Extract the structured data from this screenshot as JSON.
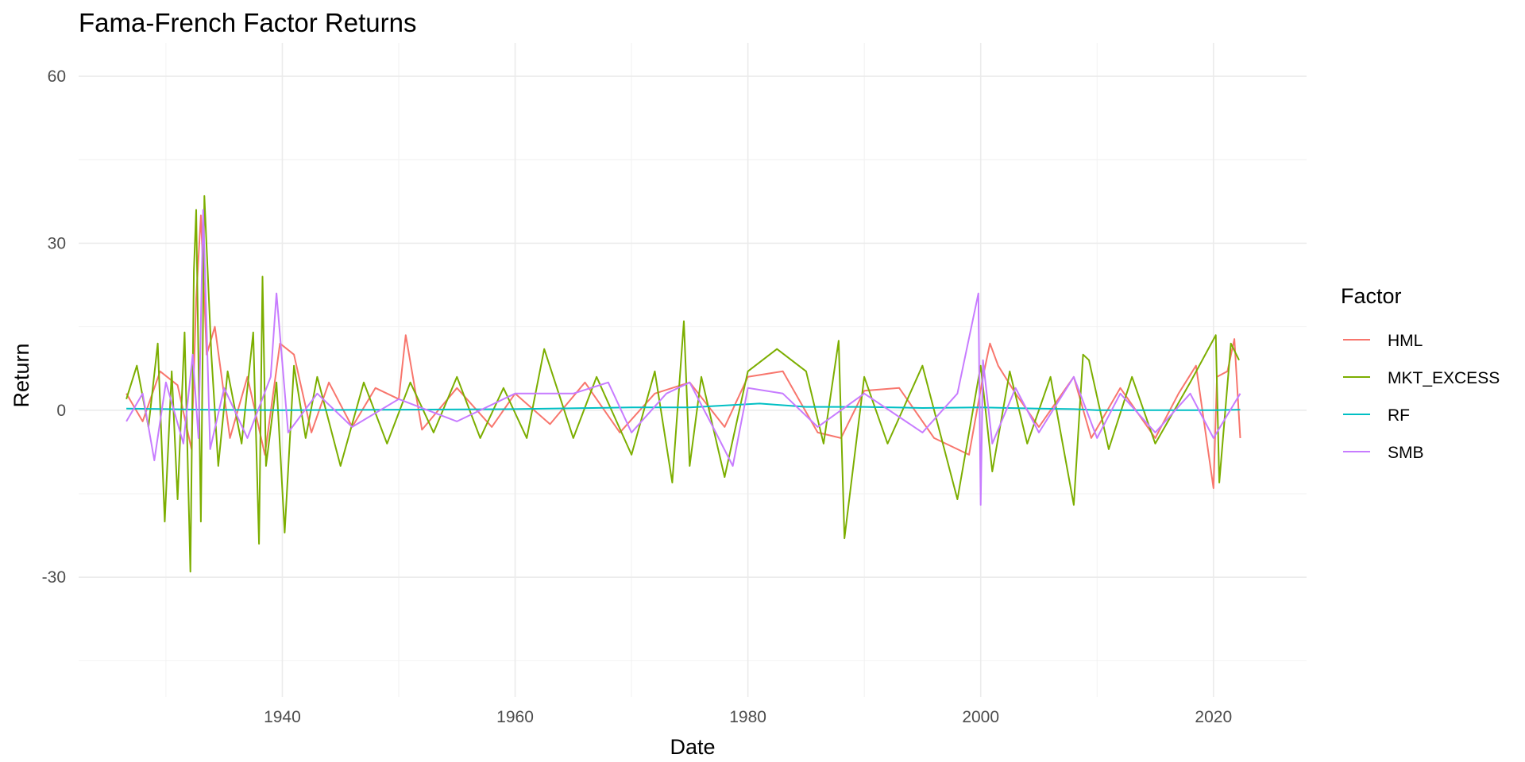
{
  "chart_data": {
    "type": "line",
    "title": "Fama-French Factor Returns",
    "xlabel": "Date",
    "ylabel": "Return",
    "xlim": [
      1922.5,
      2028.0
    ],
    "ylim": [
      -51.5,
      66.0
    ],
    "x_ticks": [
      1940,
      1960,
      1980,
      2000,
      2020
    ],
    "x_tick_labels": [
      "1940",
      "1960",
      "1980",
      "2000",
      "2020"
    ],
    "y_ticks": [
      -30,
      0,
      30,
      60
    ],
    "y_tick_labels": [
      "-30",
      "0",
      "30",
      "60"
    ],
    "grid": true,
    "legend": {
      "title": "Factor",
      "placement": "right",
      "entries": [
        "HML",
        "MKT_EXCESS",
        "RF",
        "SMB"
      ]
    },
    "x_unit": "year",
    "series": [
      {
        "name": "HML",
        "color": "#F8766D",
        "x": [
          1926.6,
          1928.0,
          1929.5,
          1931.0,
          1932.2,
          1932.6,
          1933.0,
          1933.5,
          1934.2,
          1935.5,
          1937.0,
          1938.5,
          1939.8,
          1941.0,
          1942.5,
          1944.0,
          1946.0,
          1948.0,
          1950.0,
          1950.6,
          1952.0,
          1955.0,
          1958.0,
          1960.0,
          1963.0,
          1966.0,
          1969.0,
          1972.0,
          1975.0,
          1978.0,
          1980.0,
          1983.0,
          1986.0,
          1988.0,
          1990.0,
          1993.0,
          1996.0,
          1999.0,
          2000.2,
          2000.8,
          2001.5,
          2003.0,
          2005.0,
          2008.0,
          2009.5,
          2012.0,
          2015.0,
          2017.0,
          2018.5,
          2020.0,
          2020.3,
          2021.2,
          2021.8,
          2022.3
        ],
        "values": [
          3.0,
          -2.0,
          7.0,
          4.5,
          -7.0,
          20.0,
          35.0,
          10.0,
          15.0,
          -5.0,
          6.0,
          -8.0,
          12.0,
          10.0,
          -4.0,
          5.0,
          -3.0,
          4.0,
          2.0,
          13.5,
          -3.5,
          4.0,
          -3.0,
          3.0,
          -2.5,
          5.0,
          -4.0,
          3.0,
          5.0,
          -3.0,
          6.0,
          7.0,
          -4.0,
          -5.0,
          3.5,
          4.0,
          -5.0,
          -8.0,
          6.0,
          12.0,
          8.0,
          3.0,
          -3.0,
          6.0,
          -5.0,
          4.0,
          -5.0,
          3.0,
          8.0,
          -14.0,
          6.0,
          7.0,
          12.8,
          -5.0
        ]
      },
      {
        "name": "MKT_EXCESS",
        "color": "#7CAE00",
        "x": [
          1926.6,
          1927.5,
          1928.5,
          1929.3,
          1929.9,
          1930.5,
          1931.0,
          1931.6,
          1932.1,
          1932.4,
          1932.6,
          1933.0,
          1933.3,
          1933.9,
          1934.5,
          1935.3,
          1936.5,
          1937.5,
          1938.0,
          1938.3,
          1938.6,
          1939.5,
          1940.2,
          1941.0,
          1942.0,
          1943.0,
          1945.0,
          1947.0,
          1949.0,
          1951.0,
          1953.0,
          1955.0,
          1957.0,
          1959.0,
          1961.0,
          1962.5,
          1965.0,
          1967.0,
          1970.0,
          1972.0,
          1973.5,
          1974.5,
          1975.0,
          1976.0,
          1978.0,
          1980.0,
          1982.5,
          1985.0,
          1986.5,
          1987.8,
          1988.3,
          1990.0,
          1992.0,
          1995.0,
          1998.0,
          2000.0,
          2001.0,
          2002.5,
          2004.0,
          2006.0,
          2008.0,
          2008.8,
          2009.3,
          2011.0,
          2013.0,
          2015.0,
          2018.0,
          2020.2,
          2020.5,
          2021.5,
          2022.2
        ],
        "values": [
          2.0,
          8.0,
          -3.0,
          12.0,
          -20.0,
          7.0,
          -16.0,
          14.0,
          -29.0,
          25.0,
          36.0,
          -20.0,
          38.5,
          10.0,
          -10.0,
          7.0,
          -6.0,
          14.0,
          -24.0,
          24.0,
          -10.0,
          5.0,
          -22.0,
          8.0,
          -5.0,
          6.0,
          -10.0,
          5.0,
          -6.0,
          5.0,
          -4.0,
          6.0,
          -5.0,
          4.0,
          -5.0,
          11.0,
          -5.0,
          6.0,
          -8.0,
          7.0,
          -13.0,
          16.0,
          -10.0,
          6.0,
          -12.0,
          7.0,
          11.0,
          7.0,
          -6.0,
          12.5,
          -23.0,
          6.0,
          -6.0,
          8.0,
          -16.0,
          8.0,
          -11.0,
          7.0,
          -6.0,
          6.0,
          -17.0,
          10.0,
          9.0,
          -7.0,
          6.0,
          -6.0,
          5.0,
          13.5,
          -13.0,
          12.0,
          9.0
        ]
      },
      {
        "name": "RF",
        "color": "#00BFC4",
        "x": [
          1926.6,
          1930.0,
          1933.0,
          1940.0,
          1950.0,
          1960.0,
          1970.0,
          1975.0,
          1981.0,
          1985.0,
          1990.0,
          1995.0,
          2000.0,
          2005.0,
          2008.0,
          2010.0,
          2015.0,
          2020.0,
          2022.3
        ],
        "values": [
          0.3,
          0.2,
          0.1,
          0.0,
          0.1,
          0.2,
          0.5,
          0.5,
          1.2,
          0.6,
          0.6,
          0.4,
          0.5,
          0.3,
          0.2,
          0.0,
          0.0,
          0.0,
          0.1
        ]
      },
      {
        "name": "SMB",
        "color": "#C77CFF",
        "x": [
          1926.6,
          1928.0,
          1929.0,
          1930.0,
          1931.5,
          1932.3,
          1932.8,
          1933.2,
          1933.8,
          1935.0,
          1937.0,
          1939.0,
          1939.5,
          1940.5,
          1943.0,
          1946.0,
          1950.0,
          1955.0,
          1960.0,
          1965.0,
          1968.0,
          1970.0,
          1973.0,
          1975.0,
          1977.0,
          1978.7,
          1980.0,
          1983.0,
          1986.0,
          1990.0,
          1995.0,
          1998.0,
          1999.8,
          2000.0,
          2000.2,
          2001.0,
          2003.0,
          2005.0,
          2008.0,
          2010.0,
          2012.0,
          2015.0,
          2018.0,
          2020.0,
          2022.3
        ],
        "values": [
          -2.0,
          3.0,
          -9.0,
          5.0,
          -6.0,
          10.0,
          -5.0,
          36.0,
          -7.0,
          4.0,
          -5.0,
          6.0,
          21.0,
          -4.0,
          3.0,
          -3.0,
          2.0,
          -2.0,
          3.0,
          3.0,
          5.0,
          -4.0,
          3.0,
          5.0,
          -3.0,
          -10.0,
          4.0,
          3.0,
          -3.0,
          3.0,
          -4.0,
          3.0,
          21.0,
          -17.0,
          9.0,
          -6.0,
          4.0,
          -4.0,
          6.0,
          -5.0,
          3.0,
          -4.0,
          3.0,
          -5.0,
          3.0
        ]
      }
    ]
  }
}
